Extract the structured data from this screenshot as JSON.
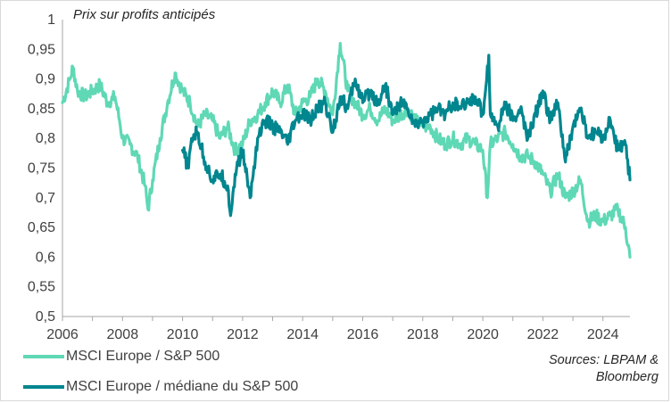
{
  "chart_data": {
    "type": "line",
    "title": "Prix sur profits anticipés",
    "xlabel": "",
    "ylabel": "",
    "xlim": [
      2006,
      2024.9
    ],
    "ylim": [
      0.5,
      1.0
    ],
    "x_ticks": [
      2006,
      2008,
      2010,
      2012,
      2014,
      2016,
      2018,
      2020,
      2022,
      2024
    ],
    "x_tick_labels": [
      "2006",
      "2008",
      "2010",
      "2012",
      "2014",
      "2016",
      "2018",
      "2020",
      "2022",
      "2024"
    ],
    "y_ticks": [
      0.5,
      0.55,
      0.6,
      0.65,
      0.7,
      0.75,
      0.8,
      0.85,
      0.9,
      0.95,
      1.0
    ],
    "y_tick_labels": [
      "0,5",
      "0,55",
      "0,6",
      "0,65",
      "0,7",
      "0,75",
      "0,8",
      "0,85",
      "0,9",
      "0,95",
      "1"
    ],
    "grid": false,
    "legend_position": "bottom-left",
    "series": [
      {
        "name": "MSCI Europe / S&P 500",
        "color": "#5fd8b5",
        "x": [
          2006.0,
          2006.25,
          2006.35,
          2006.5,
          2006.75,
          2007.0,
          2007.25,
          2007.5,
          2007.75,
          2007.9,
          2008.0,
          2008.25,
          2008.5,
          2008.75,
          2008.85,
          2009.0,
          2009.25,
          2009.5,
          2009.75,
          2010.0,
          2010.25,
          2010.5,
          2010.75,
          2011.0,
          2011.25,
          2011.5,
          2011.75,
          2012.0,
          2012.25,
          2012.5,
          2012.75,
          2013.0,
          2013.25,
          2013.5,
          2013.75,
          2014.0,
          2014.25,
          2014.5,
          2014.75,
          2015.0,
          2015.25,
          2015.5,
          2015.75,
          2016.0,
          2016.25,
          2016.5,
          2016.75,
          2017.0,
          2017.25,
          2017.5,
          2017.75,
          2018.0,
          2018.25,
          2018.5,
          2018.75,
          2019.0,
          2019.25,
          2019.5,
          2019.75,
          2020.0,
          2020.15,
          2020.25,
          2020.5,
          2020.75,
          2021.0,
          2021.25,
          2021.5,
          2021.75,
          2022.0,
          2022.25,
          2022.5,
          2022.75,
          2023.0,
          2023.25,
          2023.5,
          2023.75,
          2024.0,
          2024.25,
          2024.5,
          2024.75,
          2024.9
        ],
        "values": [
          0.86,
          0.9,
          0.92,
          0.88,
          0.87,
          0.88,
          0.89,
          0.86,
          0.87,
          0.83,
          0.8,
          0.79,
          0.77,
          0.72,
          0.68,
          0.73,
          0.8,
          0.86,
          0.91,
          0.88,
          0.86,
          0.82,
          0.84,
          0.83,
          0.8,
          0.82,
          0.78,
          0.79,
          0.83,
          0.84,
          0.86,
          0.88,
          0.86,
          0.89,
          0.84,
          0.86,
          0.87,
          0.9,
          0.88,
          0.84,
          0.96,
          0.88,
          0.86,
          0.84,
          0.85,
          0.83,
          0.85,
          0.83,
          0.84,
          0.85,
          0.83,
          0.82,
          0.82,
          0.8,
          0.79,
          0.8,
          0.79,
          0.8,
          0.79,
          0.78,
          0.7,
          0.79,
          0.8,
          0.81,
          0.79,
          0.77,
          0.77,
          0.76,
          0.74,
          0.71,
          0.74,
          0.7,
          0.71,
          0.73,
          0.66,
          0.67,
          0.66,
          0.67,
          0.68,
          0.65,
          0.6
        ]
      },
      {
        "name": "MSCI Europe / médiane du S&P 500",
        "color": "#00868f",
        "x": [
          2010.0,
          2010.2,
          2010.3,
          2010.5,
          2010.75,
          2011.0,
          2011.25,
          2011.5,
          2011.6,
          2011.75,
          2012.0,
          2012.25,
          2012.5,
          2012.75,
          2013.0,
          2013.25,
          2013.5,
          2013.75,
          2014.0,
          2014.25,
          2014.5,
          2014.75,
          2015.0,
          2015.25,
          2015.5,
          2015.75,
          2016.0,
          2016.25,
          2016.5,
          2016.75,
          2017.0,
          2017.25,
          2017.5,
          2017.75,
          2018.0,
          2018.25,
          2018.5,
          2018.75,
          2019.0,
          2019.25,
          2019.5,
          2019.75,
          2020.0,
          2020.2,
          2020.25,
          2020.5,
          2020.75,
          2021.0,
          2021.25,
          2021.5,
          2021.75,
          2022.0,
          2022.25,
          2022.5,
          2022.75,
          2023.0,
          2023.25,
          2023.5,
          2023.75,
          2024.0,
          2024.25,
          2024.5,
          2024.75,
          2024.9
        ],
        "values": [
          0.78,
          0.75,
          0.8,
          0.81,
          0.76,
          0.73,
          0.74,
          0.72,
          0.67,
          0.74,
          0.78,
          0.7,
          0.8,
          0.83,
          0.82,
          0.81,
          0.79,
          0.83,
          0.84,
          0.83,
          0.85,
          0.86,
          0.81,
          0.87,
          0.85,
          0.9,
          0.86,
          0.88,
          0.86,
          0.89,
          0.84,
          0.86,
          0.85,
          0.82,
          0.83,
          0.84,
          0.85,
          0.84,
          0.86,
          0.85,
          0.86,
          0.87,
          0.84,
          0.94,
          0.84,
          0.82,
          0.86,
          0.83,
          0.85,
          0.8,
          0.84,
          0.88,
          0.83,
          0.86,
          0.76,
          0.82,
          0.85,
          0.8,
          0.81,
          0.8,
          0.83,
          0.78,
          0.79,
          0.73
        ]
      }
    ],
    "legend": [
      "MSCI Europe / S&P 500",
      "MSCI Europe / médiane du S&P 500"
    ],
    "source": "Sources: LBPAM & Bloomberg"
  },
  "legend_items": {
    "europe_sp500": "MSCI Europe / S&P 500",
    "europe_median": "MSCI Europe / médiane du S&P 500"
  },
  "sources_line1": "Sources: LBPAM &",
  "sources_line2": "Bloomberg"
}
